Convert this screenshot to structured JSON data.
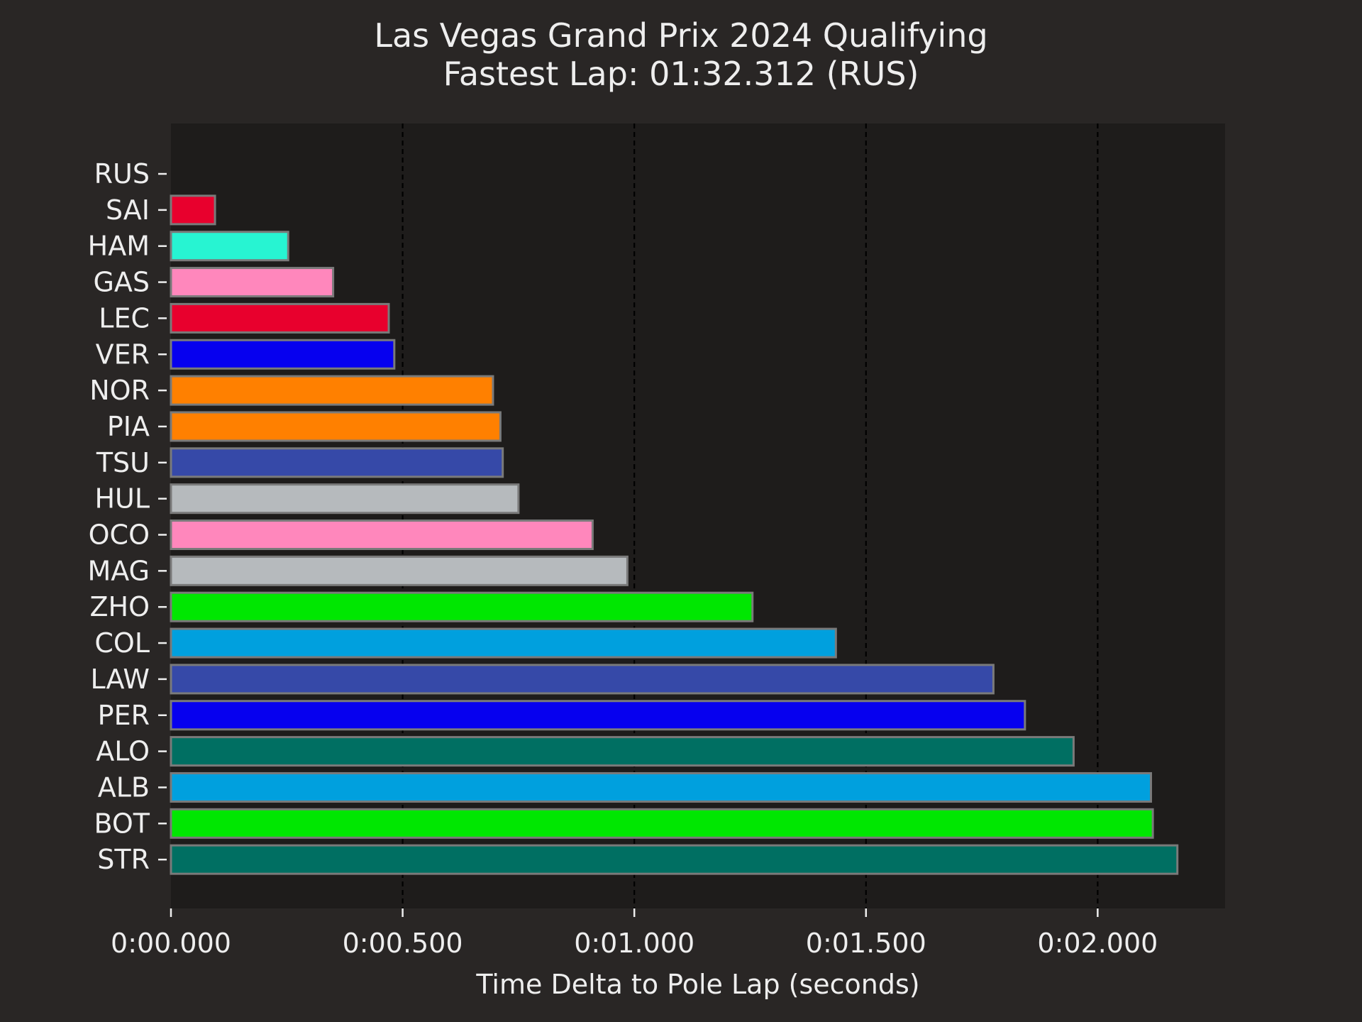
{
  "chart_data": {
    "type": "bar",
    "orientation": "horizontal",
    "title": "Las Vegas Grand Prix 2024 Qualifying",
    "subtitle": "Fastest Lap: 01:32.312 (RUS)",
    "xlabel": "Time Delta to Pole Lap (seconds)",
    "ylabel": "",
    "xlim": [
      0,
      2.275
    ],
    "x_ticks": [
      {
        "value": 0.0,
        "label": "0:00.000"
      },
      {
        "value": 0.5,
        "label": "0:00.500"
      },
      {
        "value": 1.0,
        "label": "0:01.000"
      },
      {
        "value": 1.5,
        "label": "0:01.500"
      },
      {
        "value": 2.0,
        "label": "0:02.000"
      }
    ],
    "grid": {
      "x": true,
      "y": false,
      "style": "dashed"
    },
    "colors": {
      "figure_background": "#292625",
      "plot_background": "#1e1c1b",
      "text": "#eeeeee",
      "grid": "#000000",
      "bar_edge": "#7a7a7a"
    },
    "categories": [
      "RUS",
      "SAI",
      "HAM",
      "GAS",
      "LEC",
      "VER",
      "NOR",
      "PIA",
      "TSU",
      "HUL",
      "OCO",
      "MAG",
      "ZHO",
      "COL",
      "LAW",
      "PER",
      "ALO",
      "ALB",
      "BOT",
      "STR"
    ],
    "values": [
      0.0,
      0.095,
      0.253,
      0.35,
      0.47,
      0.482,
      0.695,
      0.711,
      0.716,
      0.75,
      0.91,
      0.985,
      1.255,
      1.435,
      1.775,
      1.843,
      1.948,
      2.115,
      2.119,
      2.172
    ],
    "bar_colors": [
      "#00d2be",
      "#e8002d",
      "#27f4d2",
      "#ff87bc",
      "#e8002d",
      "#0600ef",
      "#ff8000",
      "#ff8000",
      "#3649a8",
      "#b6babd",
      "#ff87bc",
      "#b6babd",
      "#00e701",
      "#00a0de",
      "#3649a8",
      "#0600ef",
      "#006f62",
      "#00a0de",
      "#00e701",
      "#006f62"
    ]
  }
}
